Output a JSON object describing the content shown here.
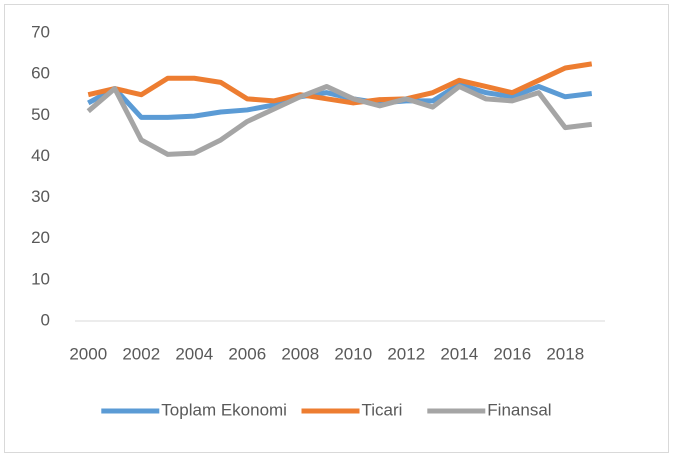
{
  "chart_data": {
    "type": "line",
    "x": [
      2000,
      2001,
      2002,
      2003,
      2004,
      2005,
      2006,
      2007,
      2008,
      2009,
      2010,
      2011,
      2012,
      2013,
      2014,
      2015,
      2016,
      2017,
      2018,
      2019
    ],
    "series": [
      {
        "name": "Toplam Ekonomi",
        "color": "#5b9bd5",
        "values": [
          53,
          56.5,
          49.5,
          49.5,
          49.8,
          50.8,
          51.3,
          52.5,
          54.5,
          55.5,
          54,
          53,
          53.5,
          53.5,
          57.5,
          55.5,
          54.5,
          57,
          54.5,
          55.3
        ]
      },
      {
        "name": "Ticari",
        "color": "#ed7d31",
        "values": [
          55,
          56.5,
          55,
          59,
          59,
          58,
          54,
          53.5,
          55,
          54,
          53,
          53.8,
          54,
          55.5,
          58.5,
          57,
          55.5,
          58.5,
          61.5,
          62.5
        ]
      },
      {
        "name": "Finansal",
        "color": "#a5a5a5",
        "values": [
          51,
          56.5,
          44,
          40.5,
          40.8,
          44,
          48.5,
          51.5,
          54.5,
          57,
          54,
          52.3,
          54,
          52,
          57,
          54,
          53.5,
          55.5,
          47,
          47.8
        ]
      }
    ],
    "xlim": [
      1999.5,
      2019.5
    ],
    "xticks": [
      2000,
      2002,
      2004,
      2006,
      2008,
      2010,
      2012,
      2014,
      2016,
      2018
    ],
    "ylim": [
      0,
      70
    ],
    "yticks": [
      0,
      10,
      20,
      30,
      40,
      50,
      60,
      70
    ],
    "legend": "bottom"
  }
}
